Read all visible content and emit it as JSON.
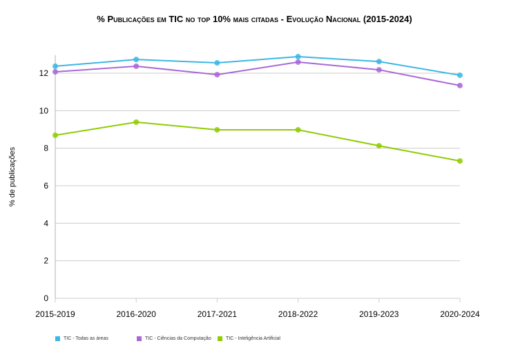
{
  "chart_data": {
    "type": "line",
    "title": "% Publicações em TIC no top 10% mais citadas - Evolução Nacional (2015-2024)",
    "xlabel": "",
    "ylabel": "% de publicações",
    "categories": [
      "2015-2019",
      "2016-2020",
      "2017-2021",
      "2018-2022",
      "2019-2023",
      "2020-2024"
    ],
    "ylim": [
      0,
      13
    ],
    "yticks": [
      0,
      2,
      4,
      6,
      8,
      10,
      12
    ],
    "grid": true,
    "legend_position": "bottom-left",
    "series": [
      {
        "name": "TIC - Todas as áreas",
        "color": "#3bb6e6",
        "values": [
          12.37,
          12.73,
          12.55,
          12.88,
          12.62,
          11.89
        ]
      },
      {
        "name": "TIC - Ciências da Computação",
        "color": "#a967d6",
        "values": [
          12.07,
          12.37,
          11.92,
          12.59,
          12.18,
          11.34
        ]
      },
      {
        "name": "TIC - Inteligência Artificial",
        "color": "#8fcc00",
        "values": [
          8.69,
          9.39,
          8.98,
          8.98,
          8.13,
          7.32
        ]
      }
    ]
  }
}
